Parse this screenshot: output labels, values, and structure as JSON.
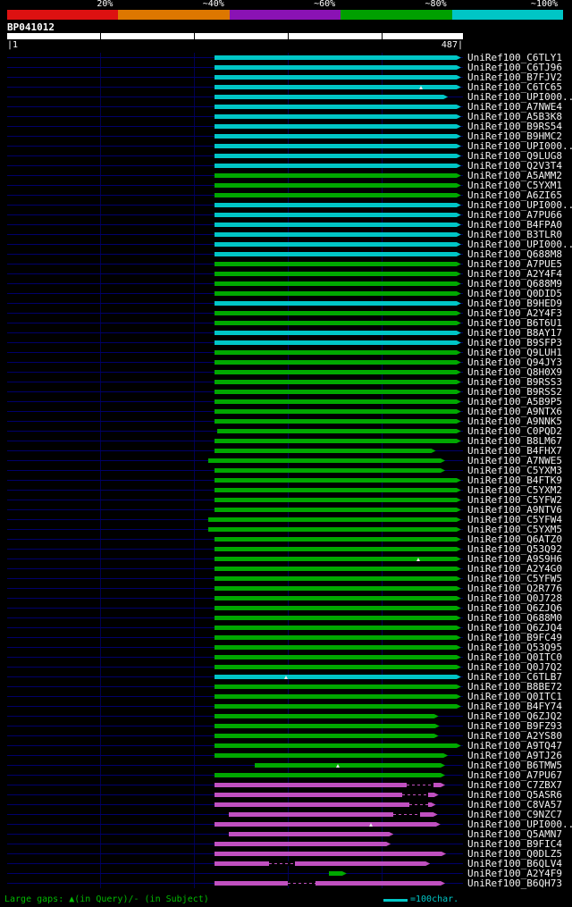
{
  "query": {
    "name": "BP041012",
    "ruler_left": "|1",
    "ruler_right": "487|"
  },
  "footer": {
    "gaps_legend": "Large gaps: ▲(in Query)/- (in Subject)",
    "scale_text": "=100char."
  },
  "chart_data": {
    "type": "bar",
    "x_range": [
      1,
      487
    ],
    "gridlines": [
      100,
      200,
      300,
      400
    ],
    "key": {
      "labels": [
        "20%",
        "~40%",
        "~60%",
        "~80%",
        "~100%"
      ],
      "colors": [
        "#dd1111",
        "#dd7700",
        "#8a12b4",
        "#00a000",
        "#00c6c6"
      ]
    },
    "bar_colors": {
      "cyan": "#00c6c6",
      "green": "#00a800",
      "magenta": "#c050c0"
    },
    "line_color": "#00006a",
    "rows": [
      {
        "label": "UniRef100_C6TLY1",
        "color": "cyan",
        "qs": 222,
        "qe": 485
      },
      {
        "label": "UniRef100_C6TJ96",
        "color": "cyan",
        "qs": 222,
        "qe": 485
      },
      {
        "label": "UniRef100_B7FJV2",
        "color": "cyan",
        "qs": 222,
        "qe": 485
      },
      {
        "label": "UniRef100_C6TC65",
        "color": "cyan",
        "qs": 222,
        "qe": 485,
        "marks": [
          442
        ]
      },
      {
        "label": "UniRef100_UPI000..",
        "color": "cyan",
        "qs": 222,
        "qe": 471
      },
      {
        "label": "UniRef100_A7NWE4",
        "color": "cyan",
        "qs": 222,
        "qe": 485
      },
      {
        "label": "UniRef100_A5B3K8",
        "color": "cyan",
        "qs": 222,
        "qe": 485
      },
      {
        "label": "UniRef100_B9RS54",
        "color": "cyan",
        "qs": 222,
        "qe": 485
      },
      {
        "label": "UniRef100_B9HMC2",
        "color": "cyan",
        "qs": 222,
        "qe": 485
      },
      {
        "label": "UniRef100_UPI000..",
        "color": "cyan",
        "qs": 222,
        "qe": 485
      },
      {
        "label": "UniRef100_Q9LUG8",
        "color": "cyan",
        "qs": 222,
        "qe": 485
      },
      {
        "label": "UniRef100_Q2V3T4",
        "color": "cyan",
        "qs": 222,
        "qe": 485
      },
      {
        "label": "UniRef100_A5AMM2",
        "color": "green",
        "qs": 222,
        "qe": 485
      },
      {
        "label": "UniRef100_C5YXM1",
        "color": "green",
        "qs": 222,
        "qe": 485
      },
      {
        "label": "UniRef100_A6ZI65",
        "color": "green",
        "qs": 222,
        "qe": 485
      },
      {
        "label": "UniRef100_UPI000..",
        "color": "cyan",
        "qs": 222,
        "qe": 485
      },
      {
        "label": "UniRef100_A7PU66",
        "color": "cyan",
        "qs": 222,
        "qe": 485
      },
      {
        "label": "UniRef100_B4FPA0",
        "color": "cyan",
        "qs": 222,
        "qe": 485
      },
      {
        "label": "UniRef100_B3TLR0",
        "color": "cyan",
        "qs": 222,
        "qe": 485
      },
      {
        "label": "UniRef100_UPI000..",
        "color": "cyan",
        "qs": 222,
        "qe": 485
      },
      {
        "label": "UniRef100_Q688M8",
        "color": "cyan",
        "qs": 222,
        "qe": 485
      },
      {
        "label": "UniRef100_A7PUE5",
        "color": "green",
        "qs": 222,
        "qe": 485
      },
      {
        "label": "UniRef100_A2Y4F4",
        "color": "green",
        "qs": 222,
        "qe": 485
      },
      {
        "label": "UniRef100_Q688M9",
        "color": "green",
        "qs": 222,
        "qe": 485
      },
      {
        "label": "UniRef100_Q0DID5",
        "color": "green",
        "qs": 222,
        "qe": 485
      },
      {
        "label": "UniRef100_B9HED9",
        "color": "cyan",
        "qs": 222,
        "qe": 485
      },
      {
        "label": "UniRef100_A2Y4F3",
        "color": "green",
        "qs": 222,
        "qe": 485
      },
      {
        "label": "UniRef100_B6T6U1",
        "color": "green",
        "qs": 222,
        "qe": 485
      },
      {
        "label": "UniRef100_B8AY17",
        "color": "cyan",
        "qs": 222,
        "qe": 485
      },
      {
        "label": "UniRef100_B9SFP3",
        "color": "cyan",
        "qs": 222,
        "qe": 485
      },
      {
        "label": "UniRef100_Q9LUH1",
        "color": "green",
        "qs": 222,
        "qe": 485
      },
      {
        "label": "UniRef100_Q94JY3",
        "color": "green",
        "qs": 222,
        "qe": 485
      },
      {
        "label": "UniRef100_Q8H0X9",
        "color": "green",
        "qs": 222,
        "qe": 485
      },
      {
        "label": "UniRef100_B9RSS3",
        "color": "green",
        "qs": 222,
        "qe": 485
      },
      {
        "label": "UniRef100_B9RSS2",
        "color": "green",
        "qs": 222,
        "qe": 485
      },
      {
        "label": "UniRef100_A5B9P5",
        "color": "green",
        "qs": 222,
        "qe": 485
      },
      {
        "label": "UniRef100_A9NTX6",
        "color": "green",
        "qs": 222,
        "qe": 485
      },
      {
        "label": "UniRef100_A9NNK5",
        "color": "green",
        "qs": 222,
        "qe": 485
      },
      {
        "label": "UniRef100_C0PQD2",
        "color": "green",
        "qs": 225,
        "qe": 485
      },
      {
        "label": "UniRef100_B8LM67",
        "color": "green",
        "qs": 222,
        "qe": 485
      },
      {
        "label": "UniRef100_B4FHX7",
        "color": "green",
        "qs": 222,
        "qe": 458
      },
      {
        "label": "UniRef100_A7NWE5",
        "color": "green",
        "qs": 215,
        "qe": 468
      },
      {
        "label": "UniRef100_C5YXM3",
        "color": "green",
        "qs": 222,
        "qe": 468
      },
      {
        "label": "UniRef100_B4FTK9",
        "color": "green",
        "qs": 222,
        "qe": 485
      },
      {
        "label": "UniRef100_C5YXM2",
        "color": "green",
        "qs": 222,
        "qe": 485
      },
      {
        "label": "UniRef100_C5YFW2",
        "color": "green",
        "qs": 222,
        "qe": 485
      },
      {
        "label": "UniRef100_A9NTV6",
        "color": "green",
        "qs": 222,
        "qe": 485
      },
      {
        "label": "UniRef100_C5YFW4",
        "color": "green",
        "qs": 215,
        "qe": 485
      },
      {
        "label": "UniRef100_C5YXM5",
        "color": "green",
        "qs": 215,
        "qe": 485
      },
      {
        "label": "UniRef100_Q6ATZ0",
        "color": "green",
        "qs": 222,
        "qe": 485
      },
      {
        "label": "UniRef100_Q53Q92",
        "color": "green",
        "qs": 222,
        "qe": 485
      },
      {
        "label": "UniRef100_A9S9H6",
        "color": "green",
        "qs": 222,
        "qe": 485,
        "marks": [
          439
        ]
      },
      {
        "label": "UniRef100_A2Y4G0",
        "color": "green",
        "qs": 222,
        "qe": 485
      },
      {
        "label": "UniRef100_C5YFW5",
        "color": "green",
        "qs": 222,
        "qe": 485
      },
      {
        "label": "UniRef100_Q2R776",
        "color": "green",
        "qs": 222,
        "qe": 485
      },
      {
        "label": "UniRef100_Q0J728",
        "color": "green",
        "qs": 222,
        "qe": 485
      },
      {
        "label": "UniRef100_Q6ZJQ6",
        "color": "green",
        "qs": 222,
        "qe": 485
      },
      {
        "label": "UniRef100_Q688M0",
        "color": "green",
        "qs": 222,
        "qe": 485
      },
      {
        "label": "UniRef100_Q6ZJQ4",
        "color": "green",
        "qs": 222,
        "qe": 485
      },
      {
        "label": "UniRef100_B9FC49",
        "color": "green",
        "qs": 222,
        "qe": 485
      },
      {
        "label": "UniRef100_Q53Q95",
        "color": "green",
        "qs": 222,
        "qe": 485
      },
      {
        "label": "UniRef100_Q0ITC0",
        "color": "green",
        "qs": 222,
        "qe": 485
      },
      {
        "label": "UniRef100_Q0J7Q2",
        "color": "green",
        "qs": 222,
        "qe": 485
      },
      {
        "label": "UniRef100_C6TLB7",
        "color": "cyan",
        "qs": 222,
        "qe": 485,
        "marks": [
          298
        ]
      },
      {
        "label": "UniRef100_B8BE72",
        "color": "green",
        "qs": 222,
        "qe": 485
      },
      {
        "label": "UniRef100_Q0ITC1",
        "color": "green",
        "qs": 222,
        "qe": 485
      },
      {
        "label": "UniRef100_B4FY74",
        "color": "green",
        "qs": 222,
        "qe": 485
      },
      {
        "label": "UniRef100_Q6ZJQ2",
        "color": "green",
        "qs": 222,
        "qe": 461
      },
      {
        "label": "UniRef100_B9FZ93",
        "color": "green",
        "qs": 222,
        "qe": 462
      },
      {
        "label": "UniRef100_A2YS80",
        "color": "green",
        "qs": 222,
        "qe": 461
      },
      {
        "label": "UniRef100_A9TQ47",
        "color": "green",
        "qs": 222,
        "qe": 485
      },
      {
        "label": "UniRef100_A9TJ26",
        "color": "green",
        "qs": 222,
        "qe": 471
      },
      {
        "label": "UniRef100_B6TMW5",
        "color": "green",
        "qs": 265,
        "qe": 468,
        "marks": [
          354
        ]
      },
      {
        "label": "UniRef100_A7PU67",
        "color": "green",
        "qs": 222,
        "qe": 468
      },
      {
        "label": "UniRef100_C7ZBX7",
        "color": "magenta",
        "qs": 222,
        "qe": 468,
        "dash": [
          [
            427,
            456
          ]
        ]
      },
      {
        "label": "UniRef100_Q5ASR6",
        "color": "magenta",
        "qs": 222,
        "qe": 461,
        "dash": [
          [
            422,
            450
          ]
        ]
      },
      {
        "label": "UniRef100_C8VA57",
        "color": "magenta",
        "qs": 222,
        "qe": 458,
        "dash": [
          [
            430,
            450
          ]
        ]
      },
      {
        "label": "UniRef100_C9NZC7",
        "color": "magenta",
        "qs": 237,
        "qe": 460,
        "dash": [
          [
            413,
            441
          ]
        ]
      },
      {
        "label": "UniRef100_UPI000..",
        "color": "magenta",
        "qs": 222,
        "qe": 463,
        "marks": [
          389
        ]
      },
      {
        "label": "UniRef100_Q5AMN7",
        "color": "magenta",
        "qs": 237,
        "qe": 413
      },
      {
        "label": "UniRef100_B9FIC4",
        "color": "magenta",
        "qs": 222,
        "qe": 410
      },
      {
        "label": "UniRef100_Q0DLZ5",
        "color": "magenta",
        "qs": 222,
        "qe": 469
      },
      {
        "label": "UniRef100_B6QLV4",
        "color": "magenta",
        "qs": 222,
        "qe": 452,
        "dash": [
          [
            280,
            308
          ]
        ]
      },
      {
        "label": "UniRef100_A2Y4F9",
        "color": "green",
        "qs": 344,
        "qe": 363
      },
      {
        "label": "UniRef100_B6QH73",
        "color": "magenta",
        "qs": 222,
        "qe": 468,
        "dash": [
          [
            300,
            330
          ]
        ]
      }
    ]
  }
}
